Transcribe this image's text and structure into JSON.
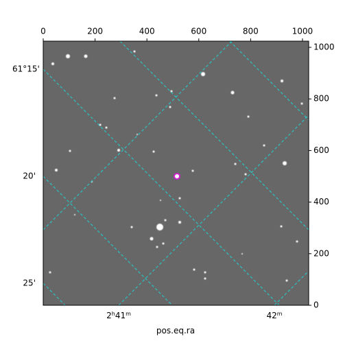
{
  "chart_data": {
    "type": "image",
    "xlim": [
      0,
      1024
    ],
    "xticks": [
      0,
      200,
      400,
      600,
      800,
      1000
    ],
    "ylim": [
      0,
      1024
    ],
    "yticks": [
      0,
      200,
      400,
      600,
      800,
      1000
    ],
    "dec_labels": [
      "61°15'",
      "20'",
      "25'"
    ],
    "ra_labels": [
      [
        "2",
        "h",
        "41",
        "m"
      ],
      [
        "42",
        "m"
      ]
    ],
    "xlabel": "pos.eq.ra"
  }
}
